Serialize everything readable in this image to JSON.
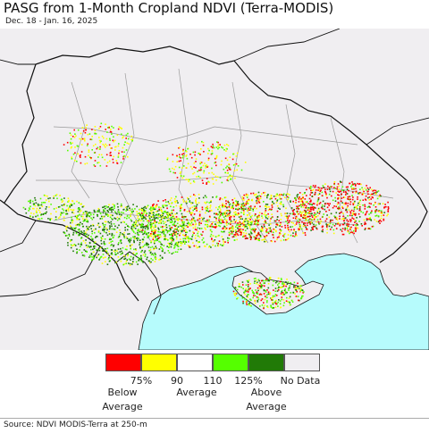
{
  "title": "PASG from 1-Month Cropland NDVI (Terra-MODIS)",
  "date_range": "Dec. 18 - Jan. 16, 2025",
  "source": "Source: NDVI MODIS-Terra at 250-m",
  "colors": {
    "land": "#f0eef1",
    "sea": "#b6fbfc",
    "border": "#111111",
    "region_border": "#9a9a9a"
  },
  "legend": {
    "swatches": [
      {
        "name": "below-75",
        "color": "#ff0000"
      },
      {
        "name": "75-90",
        "color": "#ffff00"
      },
      {
        "name": "90-110",
        "color": "#ffffff"
      },
      {
        "name": "110-125",
        "color": "#55ff00"
      },
      {
        "name": "above-125",
        "color": "#217a07"
      },
      {
        "name": "no-data",
        "color": "#f0eef1"
      }
    ],
    "ticks": [
      "75%",
      "90",
      "110",
      "125%"
    ],
    "no_data_label": "No Data",
    "captions": {
      "below": [
        "Below",
        "Average"
      ],
      "average": "Average",
      "above": [
        "Above",
        "Average"
      ]
    }
  }
}
